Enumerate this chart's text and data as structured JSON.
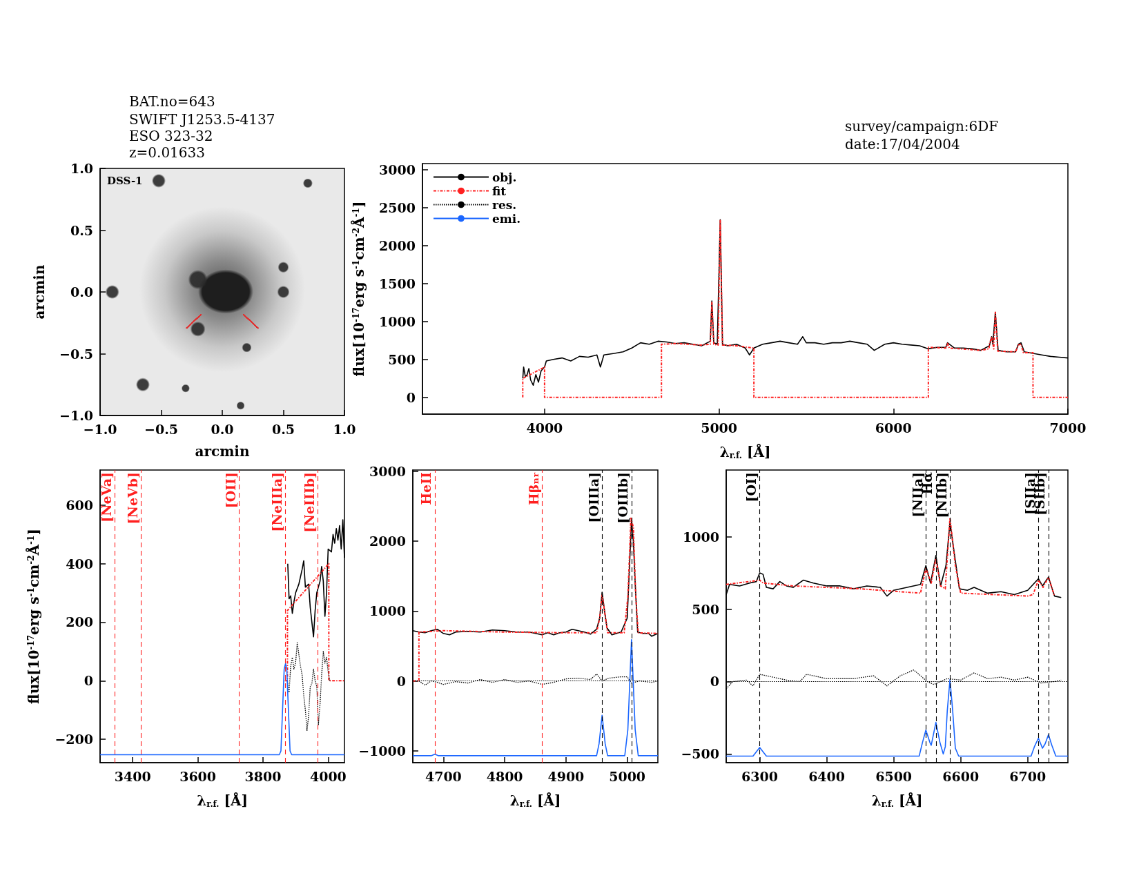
{
  "chart_data": [
    {
      "type": "scatter",
      "title": "BAT.no=643",
      "subtitle": "SWIFT J1253.5-4137\nESO 323-32\nz=0.01633",
      "xlabel": "arcmin",
      "ylabel": "arcmin",
      "annotations": [
        "DSS-1"
      ],
      "xlim": [
        -1,
        1
      ],
      "ylim": [
        -1,
        1
      ],
      "xticks": [
        {
          "value": -1,
          "label": "−1.0"
        },
        {
          "value": -0.5,
          "label": "−0.5"
        },
        {
          "value": 0,
          "label": "0.0"
        },
        {
          "value": 0.5,
          "label": "0.5"
        },
        {
          "value": 1,
          "label": "1.0"
        }
      ],
      "yticks": [
        {
          "value": -1,
          "label": "−1.0"
        },
        {
          "value": -0.5,
          "label": "−0.5"
        },
        {
          "value": 0,
          "label": "0.0"
        },
        {
          "value": 0.5,
          "label": "0.5"
        },
        {
          "value": 1,
          "label": "1.0"
        }
      ]
    },
    {
      "type": "line",
      "title": "survey/campaign:6DF",
      "subtitle": "date:17/04/2004",
      "xlabel": "λ$_{r.f.}$ [Å]",
      "ylabel": "flux[10$^{-17}$erg s$^{-1}$cm$^{-2}$Å$^{-1}$]",
      "xlim": [
        3300,
        7000
      ],
      "ylim": [
        -220,
        3080
      ],
      "xticks": [
        4000,
        5000,
        6000,
        7000
      ],
      "yticks": [
        0,
        500,
        1000,
        1500,
        2000,
        2500,
        3000
      ],
      "legend": "top left",
      "marker": "none",
      "series": [
        {
          "name": "obj.",
          "color": "#000000",
          "line_style": "solid",
          "x": [
            3875,
            3880,
            3890,
            3900,
            3910,
            3920,
            3935,
            3950,
            3965,
            3980,
            4000,
            4010,
            4050,
            4100,
            4150,
            4200,
            4250,
            4300,
            4320,
            4340,
            4400,
            4450,
            4500,
            4550,
            4600,
            4650,
            4700,
            4750,
            4800,
            4850,
            4900,
            4950,
            4959,
            4970,
            4990,
            5007,
            5020,
            5050,
            5100,
            5150,
            5175,
            5200,
            5250,
            5300,
            5350,
            5400,
            5450,
            5480,
            5500,
            5550,
            5600,
            5650,
            5700,
            5750,
            5800,
            5850,
            5890,
            5950,
            6000,
            6050,
            6100,
            6150,
            6200,
            6250,
            6300,
            6310,
            6350,
            6400,
            6450,
            6500,
            6550,
            6563,
            6570,
            6584,
            6600,
            6650,
            6700,
            6716,
            6731,
            6750,
            6800,
            6850,
            6900,
            6950,
            7000
          ],
          "values": [
            250,
            400,
            270,
            300,
            380,
            230,
            160,
            300,
            200,
            350,
            400,
            480,
            500,
            520,
            480,
            540,
            530,
            560,
            400,
            560,
            580,
            600,
            650,
            720,
            700,
            740,
            730,
            710,
            720,
            700,
            680,
            740,
            1270,
            720,
            700,
            2340,
            700,
            680,
            700,
            650,
            560,
            650,
            700,
            720,
            740,
            720,
            700,
            800,
            720,
            720,
            700,
            720,
            720,
            740,
            720,
            700,
            620,
            700,
            720,
            700,
            690,
            680,
            640,
            660,
            660,
            720,
            650,
            650,
            640,
            620,
            680,
            800,
            700,
            1120,
            620,
            600,
            600,
            700,
            720,
            600,
            580,
            560,
            540,
            530,
            520
          ]
        },
        {
          "name": "fit",
          "color": "#ff2020",
          "line_style": "dashdot",
          "x": [
            3875,
            3875,
            4000,
            4000,
            4670,
            4670,
            4750,
            4900,
            4950,
            4959,
            4970,
            4995,
            5007,
            5020,
            5100,
            5200,
            5200,
            6200,
            6200,
            6300,
            6310,
            6320,
            6500,
            6548,
            6550,
            6563,
            6575,
            6584,
            6598,
            6700,
            6716,
            6731,
            6745,
            6800,
            6800,
            7000
          ],
          "values": [
            0,
            250,
            400,
            0,
            0,
            700,
            710,
            690,
            700,
            1250,
            700,
            690,
            2330,
            690,
            680,
            650,
            0,
            0,
            660,
            650,
            710,
            650,
            620,
            640,
            700,
            800,
            640,
            1120,
            610,
            600,
            690,
            700,
            590,
            590,
            0,
            0
          ]
        },
        {
          "name": "res.",
          "color": "#000000",
          "line_style": "dotted"
        },
        {
          "name": "emi.",
          "color": "#1a66ff",
          "line_style": "solid"
        }
      ]
    },
    {
      "type": "line",
      "xlabel": "λ$_{r.f.}$ [Å]",
      "ylabel": "flux[10$^{-17}$erg s$^{-1}$cm$^{-2}$Å$^{-1}$]",
      "xlim": [
        3300,
        4050
      ],
      "ylim": [
        -280,
        720
      ],
      "xticks": [
        3400,
        3600,
        3800,
        4000
      ],
      "yticks": [
        {
          "value": -200,
          "label": "−200"
        },
        0,
        200,
        400,
        600
      ],
      "marker": "none",
      "ref_lines": [
        {
          "axis": "x",
          "value": 3346,
          "label": "[NeVa]",
          "color": "#ff2020",
          "line_style": "dashed"
        },
        {
          "axis": "x",
          "value": 3426,
          "label": "[NeVb]",
          "color": "#ff2020",
          "line_style": "dashed"
        },
        {
          "axis": "x",
          "value": 3727,
          "label": "[OII]",
          "color": "#ff2020",
          "line_style": "dashed"
        },
        {
          "axis": "x",
          "value": 3869,
          "label": "[NeIIIa]",
          "color": "#ff2020",
          "line_style": "dashed"
        },
        {
          "axis": "x",
          "value": 3968,
          "label": "[NeIIIb]",
          "color": "#ff2020",
          "line_style": "dashed"
        }
      ],
      "series": [
        {
          "color": "#000000",
          "line_style": "solid",
          "x": [
            3876,
            3880,
            3885,
            3890,
            3895,
            3900,
            3910,
            3920,
            3925,
            3930,
            3940,
            3945,
            3955,
            3960,
            3965,
            3975,
            3980,
            3985,
            3990,
            3995,
            4000,
            4010,
            4015,
            4020,
            4025,
            4030,
            4035,
            4040,
            4045,
            4050
          ],
          "values": [
            400,
            280,
            290,
            230,
            270,
            300,
            330,
            380,
            410,
            320,
            330,
            250,
            150,
            240,
            300,
            340,
            390,
            340,
            220,
            300,
            450,
            440,
            500,
            470,
            520,
            480,
            530,
            450,
            550,
            420
          ]
        },
        {
          "color": "#ff2020",
          "line_style": "dashdot",
          "x": [
            3867,
            3875,
            3875,
            4002,
            4002,
            4050
          ],
          "values": [
            0,
            0,
            240,
            400,
            0,
            0
          ]
        },
        {
          "color": "#000000",
          "line_style": "dotted",
          "x": [
            3875,
            3880,
            3885,
            3890,
            3895,
            3900,
            3905,
            3910,
            3915,
            3920,
            3925,
            3930,
            3935,
            3940,
            3945,
            3950,
            3955,
            3960,
            3965,
            3970,
            3975,
            3980,
            3985,
            3990,
            3995,
            4000,
            4005
          ],
          "values": [
            0,
            -40,
            50,
            80,
            40,
            60,
            130,
            90,
            50,
            20,
            -50,
            -100,
            -170,
            -120,
            -20,
            -10,
            40,
            0,
            -20,
            -150,
            -80,
            20,
            100,
            60,
            80,
            30,
            0
          ]
        },
        {
          "color": "#1a66ff",
          "line_style": "solid",
          "x": [
            3300,
            3850,
            3855,
            3860,
            3865,
            3869,
            3873,
            3878,
            3883,
            3888,
            4050
          ],
          "values": [
            -253,
            -253,
            -240,
            -100,
            40,
            58,
            40,
            -100,
            -240,
            -253,
            -253
          ]
        }
      ]
    },
    {
      "type": "line",
      "xlabel": "λ$_{r.f.}$ [Å]",
      "xlim": [
        4650,
        5050
      ],
      "ylim": [
        -1170,
        3020
      ],
      "xticks": [
        4700,
        4800,
        4900,
        5000
      ],
      "yticks": [
        {
          "value": -1000,
          "label": "−1000"
        },
        0,
        1000,
        2000,
        3000
      ],
      "marker": "none",
      "ref_lines": [
        {
          "axis": "x",
          "value": 4686,
          "label": "HeII",
          "color": "#ff2020",
          "line_style": "dashed"
        },
        {
          "axis": "x",
          "value": 4861,
          "label": "Hβₙᵣ",
          "color": "#ff2020",
          "line_style": "dashed"
        },
        {
          "axis": "x",
          "value": 4959,
          "label": "[OIIIa]",
          "color": "#000000",
          "line_style": "dashed"
        },
        {
          "axis": "x",
          "value": 5007,
          "label": "[OIIIb]",
          "color": "#000000",
          "line_style": "dashed"
        },
        {
          "axis": "y",
          "value": 0,
          "color": "#000000",
          "line_style": "dotted"
        }
      ],
      "series": [
        {
          "color": "#000000",
          "line_style": "solid",
          "x": [
            4650,
            4660,
            4670,
            4680,
            4690,
            4700,
            4710,
            4720,
            4740,
            4760,
            4780,
            4800,
            4820,
            4840,
            4861,
            4870,
            4880,
            4890,
            4900,
            4910,
            4920,
            4930,
            4940,
            4950,
            4955,
            4959,
            4963,
            4967,
            4975,
            4990,
            5000,
            5003,
            5007,
            5010,
            5013,
            5017,
            5025,
            5035,
            5040,
            5050
          ],
          "values": [
            720,
            700,
            690,
            720,
            740,
            680,
            660,
            700,
            710,
            700,
            730,
            720,
            700,
            700,
            660,
            690,
            660,
            690,
            700,
            740,
            720,
            700,
            670,
            740,
            900,
            1270,
            1000,
            760,
            660,
            700,
            900,
            1500,
            2300,
            2000,
            1400,
            700,
            680,
            680,
            640,
            680
          ]
        },
        {
          "color": "#ff2020",
          "line_style": "dashdot",
          "x": [
            4650,
            4660,
            4660,
            4700,
            4800,
            4900,
            4950,
            4955,
            4959,
            4963,
            4968,
            4995,
            5001,
            5006,
            5010,
            5014,
            5018,
            5050
          ],
          "values": [
            0,
            0,
            700,
            720,
            700,
            690,
            690,
            900,
            1230,
            1000,
            690,
            690,
            1200,
            2330,
            2200,
            1200,
            690,
            680
          ]
        },
        {
          "color": "#000000",
          "line_style": "dotted",
          "x": [
            4660,
            4670,
            4680,
            4690,
            4700,
            4720,
            4740,
            4760,
            4780,
            4800,
            4820,
            4840,
            4861,
            4880,
            4900,
            4920,
            4940,
            4950,
            4959,
            4970,
            4990,
            5000,
            5007,
            5020,
            5040,
            5050
          ],
          "values": [
            0,
            -60,
            0,
            -20,
            -50,
            -10,
            -30,
            20,
            -20,
            20,
            -20,
            0,
            -50,
            -20,
            30,
            40,
            20,
            100,
            0,
            40,
            60,
            60,
            -30,
            0,
            -20,
            0
          ]
        },
        {
          "color": "#1a66ff",
          "line_style": "solid",
          "x": [
            4650,
            4680,
            4686,
            4692,
            4950,
            4954,
            4959,
            4964,
            4968,
            4996,
            5001,
            5007,
            5013,
            5018,
            5050
          ],
          "values": [
            -1070,
            -1070,
            -1050,
            -1070,
            -1070,
            -900,
            -490,
            -900,
            -1070,
            -1070,
            -700,
            590,
            -700,
            -1070,
            -1070
          ]
        }
      ]
    },
    {
      "type": "line",
      "xlabel": "λ$_{r.f.}$ [Å]",
      "xlim": [
        6250,
        6760
      ],
      "ylim": [
        -560,
        1460
      ],
      "xticks": [
        6300,
        6400,
        6500,
        6600,
        6700
      ],
      "yticks": [
        {
          "value": -500,
          "label": "−500"
        },
        0,
        500,
        1000
      ],
      "marker": "none",
      "ref_lines": [
        {
          "axis": "x",
          "value": 6300,
          "label": "[OI]",
          "color": "#000000",
          "line_style": "dashed"
        },
        {
          "axis": "x",
          "value": 6548,
          "label": "[NIIa]",
          "color": "#000000",
          "line_style": "dashed"
        },
        {
          "axis": "x",
          "value": 6563,
          "label": "Hα",
          "color": "#000000",
          "line_style": "dashed"
        },
        {
          "axis": "x",
          "value": 6584,
          "label": "[NIIb]",
          "color": "#000000",
          "line_style": "dashed"
        },
        {
          "axis": "x",
          "value": 6716,
          "label": "[SIIa]",
          "color": "#000000",
          "line_style": "dashed"
        },
        {
          "axis": "x",
          "value": 6731,
          "label": "[SIIb]",
          "color": "#000000",
          "line_style": "dashed"
        },
        {
          "axis": "y",
          "value": 0,
          "color": "#000000",
          "line_style": "dotted"
        }
      ],
      "series": [
        {
          "color": "#000000",
          "line_style": "solid",
          "x": [
            6250,
            6255,
            6270,
            6285,
            6295,
            6300,
            6305,
            6310,
            6320,
            6330,
            6340,
            6350,
            6365,
            6380,
            6400,
            6420,
            6440,
            6460,
            6480,
            6490,
            6500,
            6520,
            6540,
            6548,
            6555,
            6563,
            6570,
            6578,
            6584,
            6590,
            6598,
            6610,
            6620,
            6640,
            6660,
            6680,
            6700,
            6716,
            6722,
            6731,
            6740,
            6750
          ],
          "values": [
            600,
            670,
            660,
            680,
            690,
            750,
            740,
            650,
            640,
            690,
            660,
            650,
            700,
            680,
            660,
            660,
            640,
            660,
            650,
            590,
            630,
            650,
            670,
            800,
            680,
            870,
            660,
            800,
            1100,
            900,
            640,
            630,
            650,
            610,
            620,
            600,
            630,
            710,
            660,
            720,
            590,
            580
          ]
        },
        {
          "color": "#ff2020",
          "line_style": "dashdot",
          "x": [
            6250,
            6300,
            6305,
            6350,
            6450,
            6540,
            6548,
            6556,
            6563,
            6570,
            6577,
            6584,
            6592,
            6600,
            6700,
            6708,
            6716,
            6723,
            6731,
            6740
          ],
          "values": [
            670,
            700,
            680,
            660,
            640,
            610,
            780,
            680,
            850,
            660,
            640,
            1130,
            800,
            610,
            590,
            600,
            700,
            650,
            720,
            590
          ]
        },
        {
          "color": "#000000",
          "line_style": "dotted",
          "x": [
            6250,
            6260,
            6280,
            6290,
            6300,
            6320,
            6340,
            6360,
            6370,
            6400,
            6440,
            6470,
            6490,
            6510,
            6530,
            6540,
            6550,
            6560,
            6580,
            6600,
            6620,
            6640,
            6660,
            6680,
            6700,
            6720,
            6740,
            6750
          ],
          "values": [
            -50,
            0,
            10,
            -30,
            50,
            30,
            10,
            0,
            50,
            20,
            20,
            40,
            -30,
            40,
            80,
            40,
            0,
            -20,
            20,
            10,
            60,
            20,
            30,
            10,
            30,
            -10,
            0,
            10
          ]
        },
        {
          "color": "#1a66ff",
          "line_style": "solid",
          "x": [
            6250,
            6290,
            6300,
            6310,
            6538,
            6543,
            6548,
            6554,
            6556,
            6563,
            6569,
            6574,
            6577,
            6580,
            6584,
            6588,
            6592,
            6597,
            6705,
            6710,
            6716,
            6722,
            6726,
            6731,
            6736,
            6742,
            6760
          ],
          "values": [
            -515,
            -515,
            -455,
            -515,
            -515,
            -420,
            -335,
            -420,
            -440,
            -282,
            -420,
            -500,
            -450,
            -200,
            14,
            -200,
            -460,
            -515,
            -515,
            -450,
            -391,
            -460,
            -430,
            -367,
            -440,
            -515,
            -515
          ]
        }
      ]
    }
  ]
}
